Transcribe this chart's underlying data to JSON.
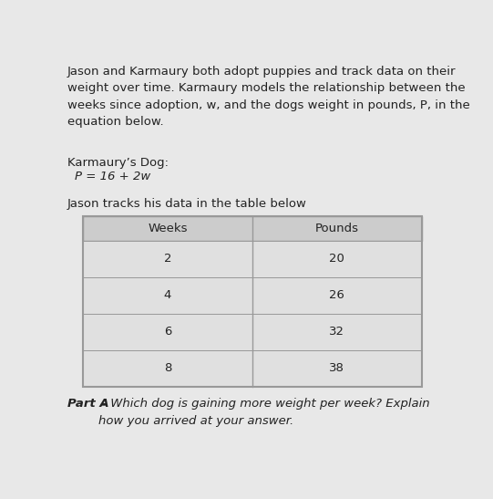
{
  "intro_text": "Jason and Karmaury both adopt puppies and track data on their\nweight over time. Karmaury models the relationship between the\nweeks since adoption, w, and the dogs weight in pounds, P, in the\nequation below.",
  "karmaury_label": "Karmaury’s Dog:",
  "equation": "P = 16 + 2w",
  "jason_label": "Jason tracks his data in the table below",
  "table_headers": [
    "Weeks",
    "Pounds"
  ],
  "table_data": [
    [
      "2",
      "20"
    ],
    [
      "4",
      "26"
    ],
    [
      "6",
      "32"
    ],
    [
      "8",
      "38"
    ]
  ],
  "part_a_bold": "Part A",
  "part_a_rest": " - Which dog is gaining more weight per week? Explain\nhow you arrived at your answer.",
  "bg_color": "#e8e8e8",
  "table_header_bg": "#cccccc",
  "table_row_bg": "#e0e0e0",
  "table_border_color": "#999999",
  "text_color": "#222222",
  "intro_fontsize": 9.5,
  "label_fontsize": 9.5,
  "equation_fontsize": 9.5,
  "table_fontsize": 9.5,
  "parta_fontsize": 9.5,
  "fig_width": 5.41,
  "fig_height": 5.47,
  "dpi": 100
}
